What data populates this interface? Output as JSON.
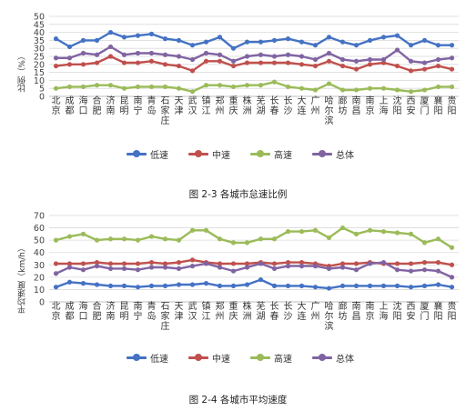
{
  "colors": {
    "low": "#4472C4",
    "mid": "#C0504D",
    "high": "#9BBB59",
    "all": "#8064A2"
  },
  "legend": [
    {
      "key": "low",
      "label": "低速",
      "color": "#4472C4"
    },
    {
      "key": "mid",
      "label": "中速",
      "color": "#C0504D"
    },
    {
      "key": "high",
      "label": "高速",
      "color": "#9BBB59"
    },
    {
      "key": "all",
      "label": "总体",
      "color": "#8064A2"
    }
  ],
  "chart_data": [
    {
      "type": "line",
      "title": "",
      "caption": "图  2-3  各城市怠速比例",
      "xlabel": "",
      "ylabel": "比例（%）",
      "ylim": [
        0,
        50
      ],
      "yticks": [
        0,
        5,
        10,
        15,
        20,
        25,
        30,
        35,
        40,
        45,
        50
      ],
      "grid": true,
      "legend_position": "bottom",
      "categories": [
        "北京",
        "成都",
        "海口",
        "合肥",
        "济南",
        "昆明",
        "南宁",
        "青岛",
        "石家庄",
        "天津",
        "武汉",
        "镇江",
        "郑州",
        "重庆",
        "株洲",
        "芜湖",
        "长春",
        "长沙",
        "大连",
        "广州",
        "哈尔滨",
        "廊坊",
        "南昌",
        "南京",
        "上海",
        "沈阳",
        "西安",
        "厦门",
        "襄阳",
        "贵阳"
      ],
      "series": [
        {
          "name": "低速",
          "color": "#4472C4",
          "values": [
            36,
            31,
            35,
            35,
            40,
            37,
            38,
            39,
            36,
            35,
            32,
            34,
            37,
            30,
            34,
            34,
            35,
            36,
            34,
            32,
            37,
            34,
            32,
            35,
            37,
            38,
            32,
            35,
            32,
            32
          ]
        },
        {
          "name": "中速",
          "color": "#C0504D",
          "values": [
            19,
            20,
            20,
            21,
            25,
            21,
            21,
            22,
            20,
            19,
            16,
            22,
            22,
            19,
            21,
            21,
            21,
            21,
            20,
            19,
            22,
            19,
            17,
            20,
            21,
            19,
            16,
            17,
            19,
            17
          ]
        },
        {
          "name": "高速",
          "color": "#9BBB59",
          "values": [
            5,
            6,
            6,
            7,
            7,
            5,
            6,
            6,
            6,
            5,
            3,
            7,
            7,
            6,
            7,
            7,
            9,
            6,
            5,
            4,
            8,
            4,
            4,
            5,
            5,
            4,
            3,
            4,
            6,
            6
          ]
        },
        {
          "name": "总体",
          "color": "#8064A2",
          "values": [
            24,
            24,
            27,
            26,
            31,
            26,
            27,
            27,
            26,
            25,
            23,
            27,
            26,
            22,
            25,
            26,
            25,
            26,
            25,
            23,
            27,
            23,
            22,
            23,
            23,
            29,
            22,
            21,
            23,
            24
          ]
        }
      ]
    },
    {
      "type": "line",
      "title": "",
      "caption": "图  2-4  各城市平均速度",
      "xlabel": "",
      "ylabel": "平均速度（km/h）",
      "ylim": [
        0,
        70
      ],
      "yticks": [
        0,
        10,
        20,
        30,
        40,
        50,
        60,
        70
      ],
      "grid": true,
      "legend_position": "bottom",
      "categories": [
        "北京",
        "成都",
        "海口",
        "合肥",
        "济南",
        "昆明",
        "南宁",
        "青岛",
        "石家庄",
        "天津",
        "武汉",
        "镇江",
        "郑州",
        "重庆",
        "株洲",
        "芜湖",
        "长春",
        "长沙",
        "大连",
        "广州",
        "哈尔滨",
        "廊坊",
        "南昌",
        "南京",
        "上海",
        "沈阳",
        "西安",
        "厦门",
        "襄阳",
        "贵阳"
      ],
      "series": [
        {
          "name": "低速",
          "color": "#4472C4",
          "values": [
            12,
            16,
            15,
            14,
            13,
            13,
            12,
            13,
            13,
            14,
            14,
            15,
            13,
            13,
            14,
            18,
            13,
            13,
            13,
            12,
            11,
            13,
            13,
            13,
            13,
            13,
            12,
            13,
            14,
            12
          ]
        },
        {
          "name": "中速",
          "color": "#C0504D",
          "values": [
            31,
            31,
            31,
            32,
            31,
            31,
            31,
            32,
            31,
            32,
            34,
            32,
            31,
            31,
            31,
            32,
            31,
            32,
            32,
            31,
            29,
            31,
            31,
            32,
            31,
            31,
            31,
            32,
            32,
            30
          ]
        },
        {
          "name": "高速",
          "color": "#9BBB59",
          "values": [
            50,
            53,
            55,
            50,
            51,
            51,
            50,
            53,
            51,
            50,
            58,
            58,
            51,
            48,
            48,
            51,
            51,
            57,
            57,
            58,
            52,
            60,
            55,
            58,
            57,
            56,
            55,
            48,
            51,
            44
          ]
        },
        {
          "name": "总体",
          "color": "#8064A2",
          "values": [
            23,
            28,
            26,
            29,
            27,
            27,
            26,
            28,
            28,
            27,
            29,
            31,
            28,
            25,
            28,
            31,
            27,
            29,
            29,
            29,
            27,
            28,
            26,
            31,
            32,
            26,
            25,
            26,
            25,
            20
          ]
        }
      ]
    }
  ]
}
